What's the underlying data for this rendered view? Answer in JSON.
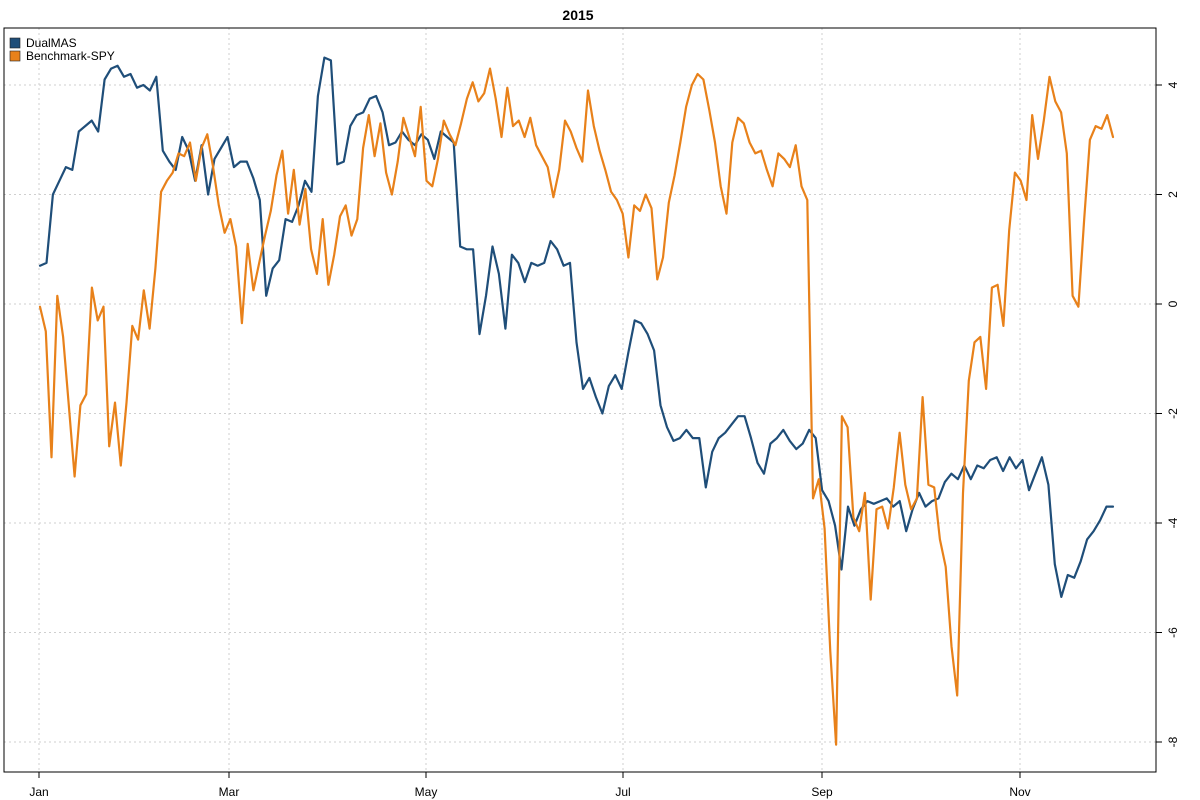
{
  "chart_data": {
    "type": "line",
    "title": "2015",
    "xlabel": "",
    "ylabel": "",
    "x_tick_labels": [
      "Jan",
      "Mar",
      "May",
      "Jul",
      "Sep",
      "Nov"
    ],
    "y_ticks": [
      4,
      2,
      0,
      -2,
      -4,
      -6,
      -8
    ],
    "y_axis_side": "right",
    "ylim": [
      -8.5,
      5.0
    ],
    "grid": true,
    "legend_position": "top-left",
    "series": [
      {
        "name": "DualMAS",
        "color": "#1f4e79",
        "values": [
          0.7,
          0.75,
          2.0,
          2.25,
          2.5,
          2.45,
          3.15,
          3.25,
          3.35,
          3.15,
          4.1,
          4.3,
          4.35,
          4.15,
          4.2,
          3.95,
          4.0,
          3.9,
          4.15,
          2.8,
          2.6,
          2.45,
          3.05,
          2.8,
          2.25,
          2.9,
          2.0,
          2.65,
          2.85,
          3.05,
          2.5,
          2.6,
          2.6,
          2.3,
          1.9,
          0.15,
          0.65,
          0.8,
          1.55,
          1.5,
          1.8,
          2.25,
          2.05,
          3.8,
          4.5,
          4.45,
          2.55,
          2.6,
          3.25,
          3.45,
          3.5,
          3.75,
          3.8,
          3.5,
          2.9,
          2.95,
          3.15,
          3.0,
          2.9,
          3.1,
          3.0,
          2.65,
          3.15,
          3.05,
          2.95,
          1.05,
          1.0,
          1.0,
          -0.55,
          0.15,
          1.05,
          0.55,
          -0.45,
          0.9,
          0.75,
          0.4,
          0.75,
          0.7,
          0.75,
          1.15,
          1.0,
          0.7,
          0.75,
          -0.7,
          -1.55,
          -1.35,
          -1.7,
          -2.0,
          -1.5,
          -1.3,
          -1.55,
          -0.9,
          -0.3,
          -0.35,
          -0.55,
          -0.85,
          -1.85,
          -2.25,
          -2.5,
          -2.45,
          -2.3,
          -2.45,
          -2.45,
          -3.35,
          -2.7,
          -2.45,
          -2.35,
          -2.2,
          -2.05,
          -2.05,
          -2.45,
          -2.9,
          -3.1,
          -2.55,
          -2.45,
          -2.3,
          -2.5,
          -2.65,
          -2.55,
          -2.3,
          -2.45,
          -3.4,
          -3.6,
          -4.05,
          -4.85,
          -3.7,
          -4.05,
          -3.75,
          -3.6,
          -3.65,
          -3.6,
          -3.55,
          -3.7,
          -3.6,
          -4.15,
          -3.75,
          -3.45,
          -3.7,
          -3.6,
          -3.55,
          -3.25,
          -3.1,
          -3.2,
          -2.95,
          -3.2,
          -2.95,
          -3.0,
          -2.85,
          -2.8,
          -3.05,
          -2.8,
          -3.0,
          -2.85,
          -3.4,
          -3.1,
          -2.8,
          -3.3,
          -4.75,
          -5.35,
          -4.95,
          -5.0,
          -4.7,
          -4.3,
          -4.15,
          -3.95,
          -3.7,
          -3.7
        ]
      },
      {
        "name": "Benchmark-SPY",
        "color": "#e8811a",
        "values": [
          -0.05,
          -0.5,
          -2.8,
          0.15,
          -0.6,
          -1.85,
          -3.15,
          -1.85,
          -1.65,
          0.3,
          -0.3,
          -0.05,
          -2.6,
          -1.8,
          -2.95,
          -1.8,
          -0.4,
          -0.65,
          0.25,
          -0.45,
          0.65,
          2.05,
          2.25,
          2.4,
          2.75,
          2.7,
          2.95,
          2.25,
          2.85,
          3.1,
          2.5,
          1.8,
          1.3,
          1.55,
          1.05,
          -0.35,
          1.1,
          0.25,
          0.75,
          1.25,
          1.7,
          2.35,
          2.8,
          1.65,
          2.45,
          1.45,
          2.1,
          1.0,
          0.55,
          1.55,
          0.35,
          0.9,
          1.6,
          1.8,
          1.25,
          1.55,
          2.85,
          3.45,
          2.7,
          3.3,
          2.4,
          2.0,
          2.6,
          3.4,
          3.05,
          2.7,
          3.6,
          2.25,
          2.15,
          2.65,
          3.35,
          3.1,
          2.9,
          3.3,
          3.75,
          4.05,
          3.7,
          3.85,
          4.3,
          3.75,
          3.05,
          3.95,
          3.25,
          3.35,
          3.05,
          3.4,
          2.9,
          2.7,
          2.5,
          1.95,
          2.45,
          3.35,
          3.15,
          2.85,
          2.6,
          3.9,
          3.25,
          2.8,
          2.45,
          2.05,
          1.9,
          1.65,
          0.85,
          1.8,
          1.7,
          2.0,
          1.75,
          0.45,
          0.85,
          1.85,
          2.35,
          2.95,
          3.6,
          4.0,
          4.2,
          4.1,
          3.55,
          2.95,
          2.15,
          1.65,
          2.95,
          3.4,
          3.3,
          2.95,
          2.75,
          2.8,
          2.45,
          2.15,
          2.75,
          2.65,
          2.5,
          2.9,
          2.15,
          1.9,
          -3.55,
          -3.2,
          -4.1,
          -6.35,
          -8.05,
          -2.05,
          -2.25,
          -3.9,
          -4.15,
          -3.45,
          -5.4,
          -3.75,
          -3.7,
          -4.1,
          -3.35,
          -2.35,
          -3.3,
          -3.75,
          -3.55,
          -1.7,
          -3.3,
          -3.35,
          -4.3,
          -4.8,
          -6.25,
          -7.15,
          -3.45,
          -1.4,
          -0.7,
          -0.6,
          -1.55,
          0.3,
          0.35,
          -0.4,
          1.35,
          2.4,
          2.25,
          1.9,
          3.45,
          2.65,
          3.35,
          4.15,
          3.7,
          3.5,
          2.75,
          0.15,
          -0.05,
          1.55,
          3.0,
          3.25,
          3.2,
          3.45,
          3.05
        ]
      }
    ]
  }
}
